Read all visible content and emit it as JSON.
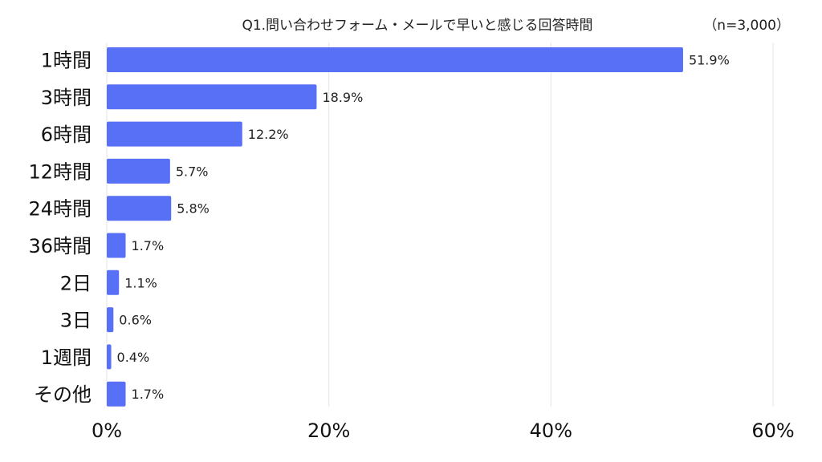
{
  "chart_data": {
    "type": "bar",
    "orientation": "horizontal",
    "title": "Q1.問い合わせフォーム・メールで早いと感じる回答時間",
    "note": "（n=3,000）",
    "categories": [
      "1時間",
      "3時間",
      "6時間",
      "12時間",
      "24時間",
      "36時間",
      "2日",
      "3日",
      "1週間",
      "その他"
    ],
    "values": [
      51.9,
      18.9,
      12.2,
      5.7,
      5.8,
      1.7,
      1.1,
      0.6,
      0.4,
      1.7
    ],
    "value_labels": [
      "51.9%",
      "18.9%",
      "12.2%",
      "5.7%",
      "5.8%",
      "1.7%",
      "1.1%",
      "0.6%",
      "0.4%",
      "1.7%"
    ],
    "xlim": [
      0,
      60
    ],
    "x_ticks": [
      0,
      20,
      40,
      60
    ],
    "x_tick_labels": [
      "0%",
      "20%",
      "40%",
      "60%"
    ],
    "xlabel": "",
    "ylabel": "",
    "grid": true,
    "bar_color": "#5770f6",
    "grid_color": "#e3e3e3"
  }
}
